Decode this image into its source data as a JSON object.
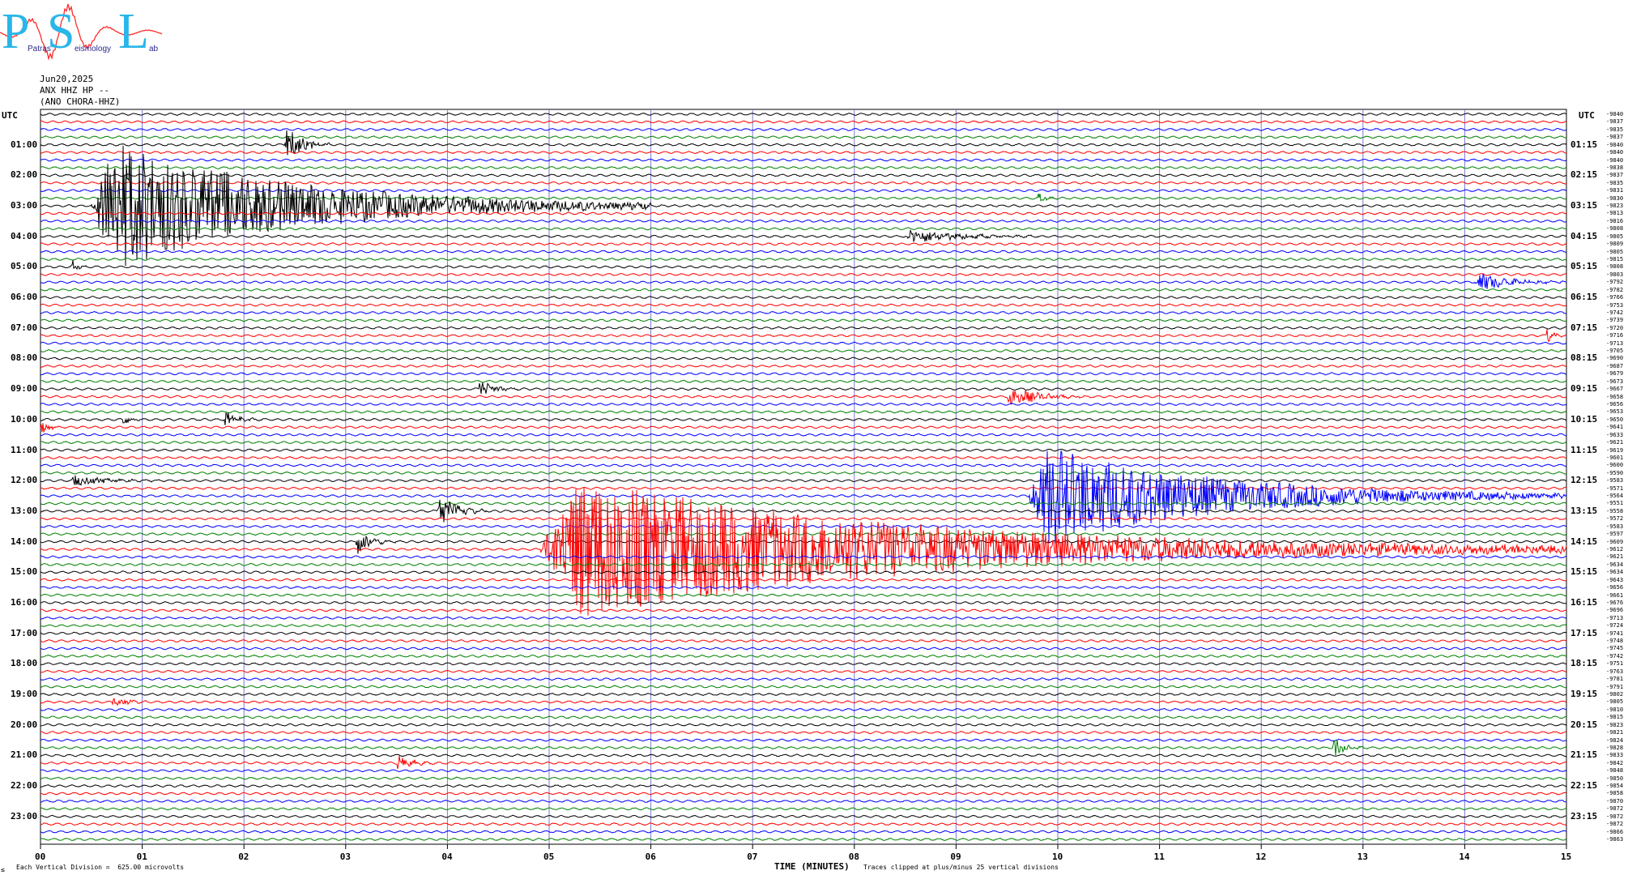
{
  "logo": {
    "letters": [
      "P",
      "S",
      "L"
    ],
    "words": [
      "Patras",
      "eismology",
      "ab"
    ],
    "wave_color": "#ff2a2a",
    "letter_color": "#29b6e8"
  },
  "header": {
    "date": "Jun20,2025",
    "channel": "ANX HHZ HP --",
    "station": "(ANO CHORA-HHZ)"
  },
  "axis": {
    "left_label": "UTC",
    "right_label": "UTC",
    "left_ticks": [
      "01:00",
      "02:00",
      "03:00",
      "04:00",
      "05:00",
      "06:00",
      "07:00",
      "08:00",
      "09:00",
      "10:00",
      "11:00",
      "12:00",
      "13:00",
      "14:00",
      "15:00",
      "16:00",
      "17:00",
      "18:00",
      "19:00",
      "20:00",
      "21:00",
      "22:00",
      "23:00"
    ],
    "right_ticks": [
      "01:15",
      "02:15",
      "03:15",
      "04:15",
      "05:15",
      "06:15",
      "07:15",
      "08:15",
      "09:15",
      "10:15",
      "11:15",
      "12:15",
      "13:15",
      "14:15",
      "15:15",
      "16:15",
      "17:15",
      "18:15",
      "19:15",
      "20:15",
      "21:15",
      "22:15",
      "23:15"
    ],
    "x_ticks": [
      "00",
      "01",
      "02",
      "03",
      "04",
      "05",
      "06",
      "07",
      "08",
      "09",
      "10",
      "11",
      "12",
      "13",
      "14",
      "15"
    ],
    "x_title": "TIME (MINUTES)",
    "x_range": [
      0,
      15
    ]
  },
  "footer": {
    "corner": "≤",
    "division": "Each Vertical Division =  625.00 microvolts",
    "clip": "Traces clipped at plus/minus 25 vertical divisions"
  },
  "chart_data": {
    "type": "line",
    "trace_minutes": 15,
    "traces_per_hour": 4,
    "trace_count": 96,
    "color_cycle": [
      "#000000",
      "#ff0000",
      "#0000ff",
      "#008000"
    ],
    "grid": true,
    "offsets": [
      "-9840",
      "-9837",
      "-9835",
      "-9837",
      "-9840",
      "-9840",
      "-9840",
      "-9838",
      "-9837",
      "-9835",
      "-9831",
      "-9830",
      "-9823",
      "-9813",
      "-9816",
      "-9808",
      "-9805",
      "-9809",
      "-9805",
      "-9815",
      "-9808",
      "-9803",
      "-9792",
      "-9782",
      "-9766",
      "-9753",
      "-9742",
      "-9739",
      "-9720",
      "-9716",
      "-9713",
      "-9705",
      "-9690",
      "-9687",
      "-9679",
      "-9673",
      "-9667",
      "-9658",
      "-9656",
      "-9653",
      "-9650",
      "-9641",
      "-9633",
      "-9621",
      "-9619",
      "-9601",
      "-9600",
      "-9590",
      "-9583",
      "-9571",
      "-9564",
      "-9551",
      "-9558",
      "-9572",
      "-9583",
      "-9597",
      "-9609",
      "-9612",
      "-9621",
      "-9634",
      "-9634",
      "-9643",
      "-9656",
      "-9661",
      "-9676",
      "-9696",
      "-9713",
      "-9724",
      "-9741",
      "-9748",
      "-9745",
      "-9742",
      "-9751",
      "-9763",
      "-9781",
      "-9791",
      "-9802",
      "-9805",
      "-9810",
      "-9815",
      "-9823",
      "-9821",
      "-9824",
      "-9828",
      "-9833",
      "-9842",
      "-9848",
      "-9850",
      "-9854",
      "-9858",
      "-9870",
      "-9872",
      "-9872",
      "-9872",
      "-9866",
      "-9863"
    ],
    "events": [
      {
        "trace": 4,
        "start_min": 2.4,
        "duration_min": 0.45,
        "amp_div": 2.5
      },
      {
        "trace": 11,
        "start_min": 9.8,
        "duration_min": 0.25,
        "amp_div": 0.6
      },
      {
        "trace": 12,
        "start_min": 0.5,
        "duration_min": 5.5,
        "amp_div": 8.5
      },
      {
        "trace": 16,
        "start_min": 8.5,
        "duration_min": 1.4,
        "amp_div": 0.9
      },
      {
        "trace": 20,
        "start_min": 0.3,
        "duration_min": 0.15,
        "amp_div": 1.0
      },
      {
        "trace": 22,
        "start_min": 14.1,
        "duration_min": 0.9,
        "amp_div": 1.3
      },
      {
        "trace": 29,
        "start_min": 14.8,
        "duration_min": 0.2,
        "amp_div": 1.0
      },
      {
        "trace": 36,
        "start_min": 4.3,
        "duration_min": 0.4,
        "amp_div": 1.3
      },
      {
        "trace": 37,
        "start_min": 9.5,
        "duration_min": 0.8,
        "amp_div": 1.3
      },
      {
        "trace": 40,
        "start_min": 0.8,
        "duration_min": 0.2,
        "amp_div": 0.8
      },
      {
        "trace": 40,
        "start_min": 1.8,
        "duration_min": 0.4,
        "amp_div": 1.0
      },
      {
        "trace": 41,
        "start_min": 0.0,
        "duration_min": 0.2,
        "amp_div": 1.0
      },
      {
        "trace": 48,
        "start_min": 0.3,
        "duration_min": 0.9,
        "amp_div": 0.7
      },
      {
        "trace": 50,
        "start_min": 9.7,
        "duration_min": 5.3,
        "amp_div": 6.5
      },
      {
        "trace": 52,
        "start_min": 3.9,
        "duration_min": 0.5,
        "amp_div": 2.5
      },
      {
        "trace": 56,
        "start_min": 3.1,
        "duration_min": 0.4,
        "amp_div": 1.6
      },
      {
        "trace": 57,
        "start_min": 4.9,
        "duration_min": 10.1,
        "amp_div": 9.5
      },
      {
        "trace": 77,
        "start_min": 0.7,
        "duration_min": 0.4,
        "amp_div": 0.7
      },
      {
        "trace": 83,
        "start_min": 12.7,
        "duration_min": 0.3,
        "amp_div": 1.6
      },
      {
        "trace": 85,
        "start_min": 3.5,
        "duration_min": 0.4,
        "amp_div": 1.1
      }
    ]
  }
}
